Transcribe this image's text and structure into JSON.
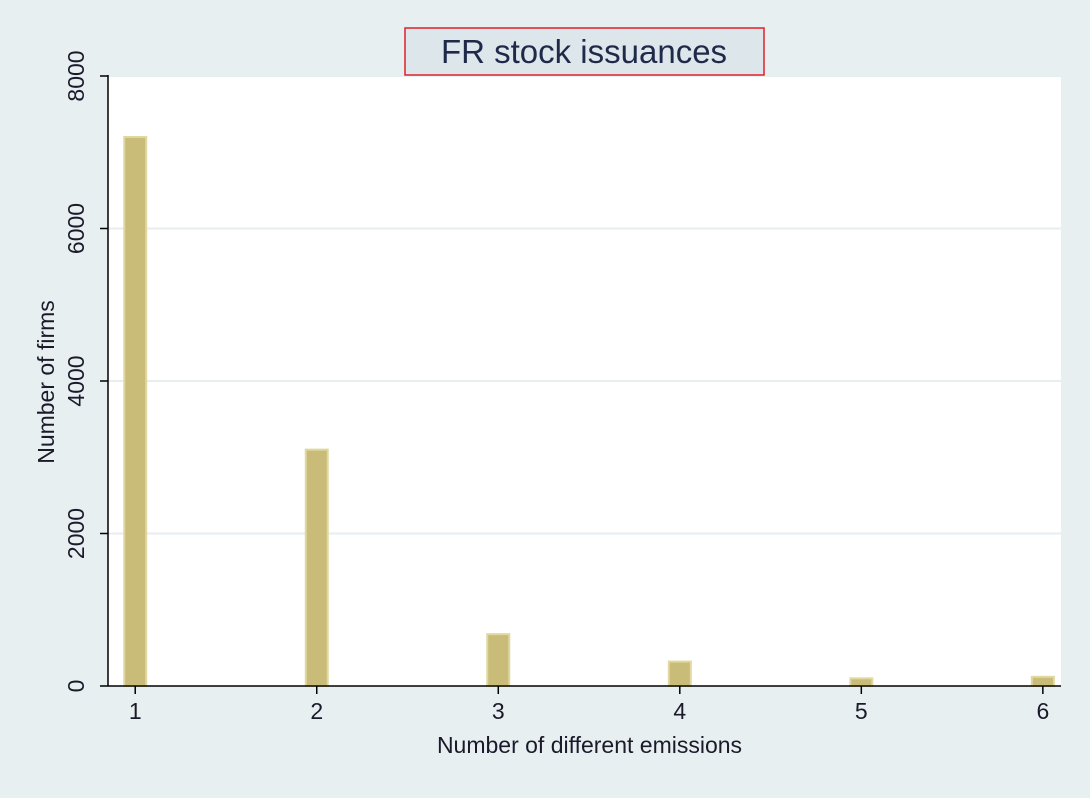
{
  "chart_data": {
    "type": "bar",
    "title": "FR stock issuances",
    "xlabel": "Number of different emissions",
    "ylabel": "Number of firms",
    "x": [
      1,
      2,
      3,
      4,
      5,
      6
    ],
    "values": [
      7200,
      3100,
      680,
      320,
      100,
      120
    ],
    "xlim": [
      0.85,
      6.1
    ],
    "ylim": [
      0,
      8000
    ],
    "yticks": [
      0,
      2000,
      4000,
      6000,
      8000
    ],
    "xticks": [
      1,
      2,
      3,
      4,
      5,
      6
    ],
    "grid": true,
    "colors": {
      "background": "#e8eff1",
      "plot_area": "#ffffff",
      "bar_fill": "#c8bc78",
      "bar_stroke": "#e0d8a0",
      "gridline": "#e6eef0",
      "title_box_fill": "#dde6ea",
      "title_box_stroke": "#e0202a",
      "text": "#1a1a2a",
      "axis": "#000000"
    }
  }
}
